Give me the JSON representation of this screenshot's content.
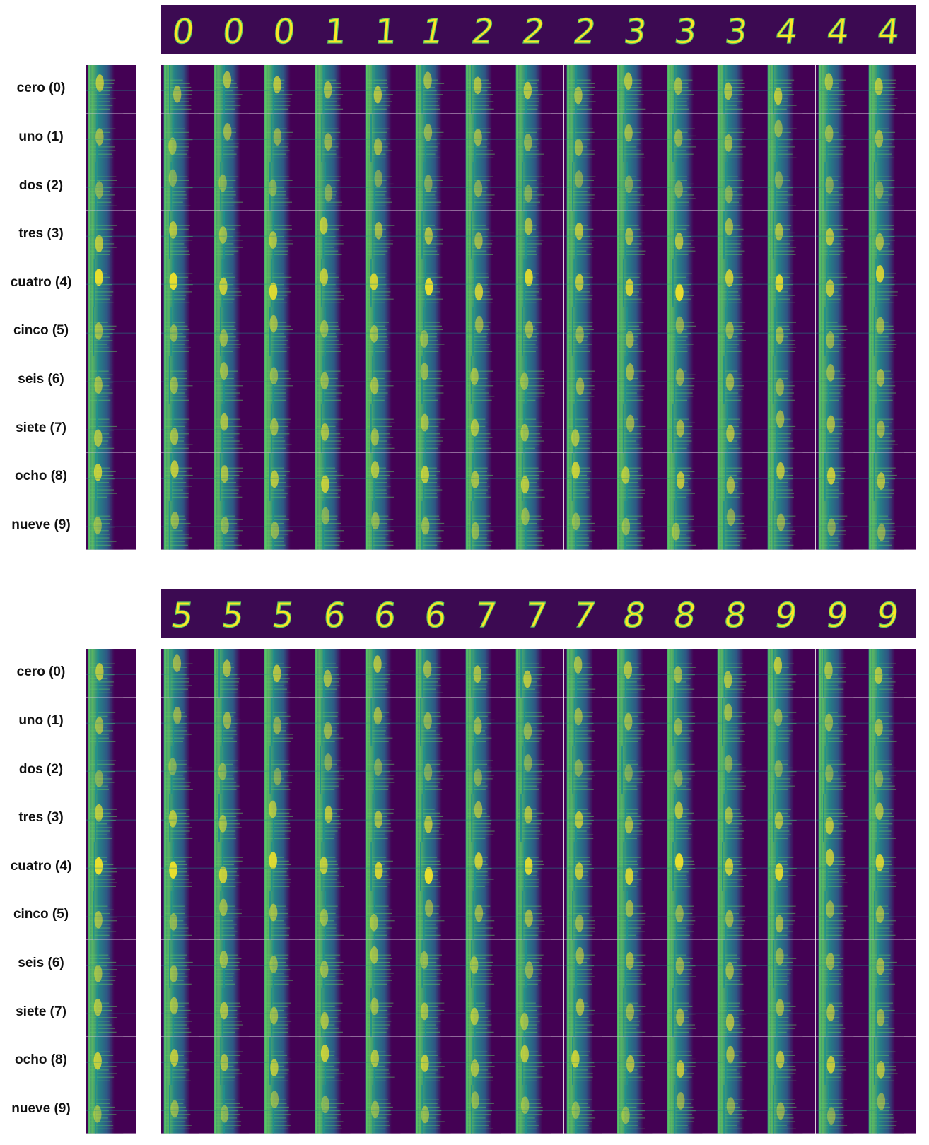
{
  "panels": [
    {
      "digits": [
        "0",
        "0",
        "0",
        "1",
        "1",
        "1",
        "2",
        "2",
        "2",
        "3",
        "3",
        "3",
        "4",
        "4",
        "4"
      ],
      "row_labels": [
        "cero (0)",
        "uno (1)",
        "dos (2)",
        "tres (3)",
        "cuatro (4)",
        "cinco (5)",
        "seis (6)",
        "siete (7)",
        "ocho (8)",
        "nueve (9)"
      ]
    },
    {
      "digits": [
        "5",
        "5",
        "5",
        "6",
        "6",
        "6",
        "7",
        "7",
        "7",
        "8",
        "8",
        "8",
        "9",
        "9",
        "9"
      ],
      "row_labels": [
        "cero (0)",
        "uno (1)",
        "dos (2)",
        "tres (3)",
        "cuatro (4)",
        "cinco (5)",
        "seis (6)",
        "siete (7)",
        "ocho (8)",
        "nueve (9)"
      ]
    }
  ],
  "colors": {
    "viridis_dark": "#440154",
    "viridis_mid": "#21918c",
    "viridis_green": "#5ec962",
    "viridis_yellow": "#fde725",
    "background": "#ffffff"
  }
}
